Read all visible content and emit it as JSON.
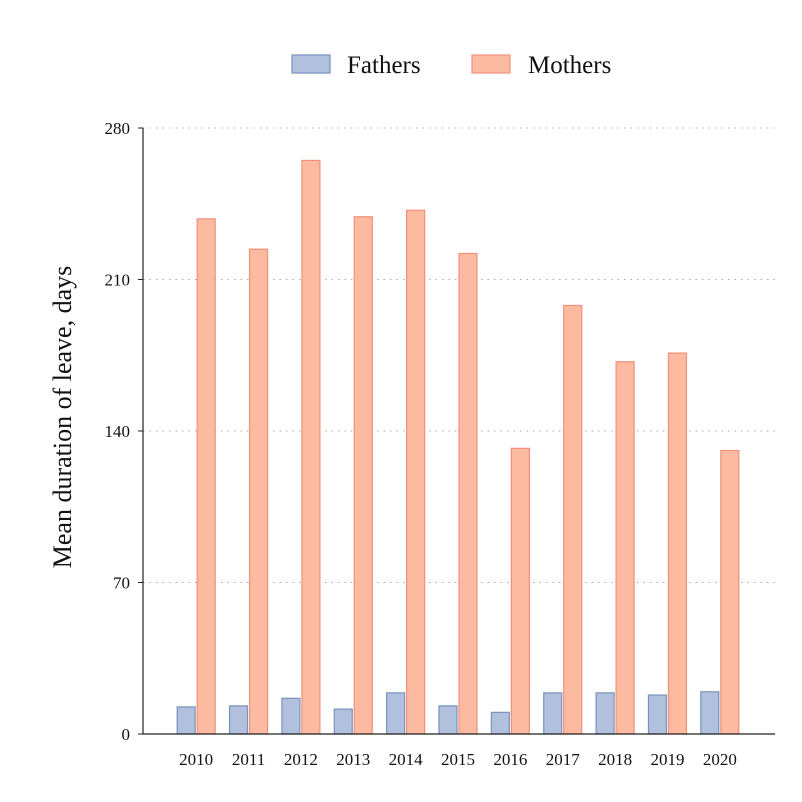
{
  "colors": {
    "fathers_fill": "#b0c0dd",
    "fathers_stroke": "#7a92be",
    "mothers_fill": "#fcbba1",
    "mothers_stroke": "#f0907a",
    "grid": "#aaaaaa",
    "axis": "#222222"
  },
  "chart_data": {
    "type": "bar",
    "title": "",
    "xlabel": "",
    "ylabel": "Mean duration of leave, days",
    "ylim": [
      0,
      280
    ],
    "yticks": [
      0,
      70,
      140,
      210,
      280
    ],
    "grid": "horizontal-dotted",
    "legend_position": "top",
    "categories": [
      "2010",
      "2011",
      "2012",
      "2013",
      "2014",
      "2015",
      "2016",
      "2017",
      "2018",
      "2019",
      "2020"
    ],
    "series": [
      {
        "name": "Fathers",
        "values": [
          12.5,
          13,
          16.5,
          11.5,
          19,
          13,
          10,
          19,
          19,
          18,
          19.5
        ]
      },
      {
        "name": "Mothers",
        "values": [
          238,
          224,
          265,
          239,
          242,
          222,
          132,
          198,
          172,
          176,
          131
        ]
      }
    ]
  }
}
